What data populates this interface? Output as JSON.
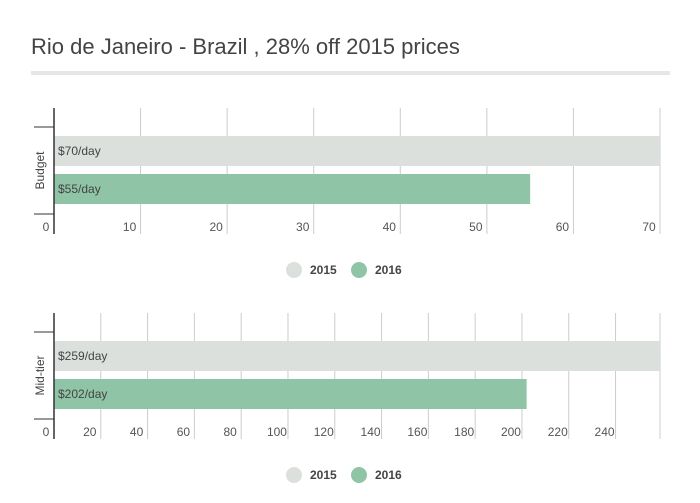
{
  "title": "Rio de Janeiro - Brazil , 28% off 2015 prices",
  "colors": {
    "series_2015": "#dbe0dd",
    "series_2016": "#8fc4a6",
    "grid": "#cccccc",
    "axis": "#333333"
  },
  "chart_data": [
    {
      "type": "bar",
      "orientation": "horizontal",
      "categories": [
        "Budget"
      ],
      "series": [
        {
          "name": "2015",
          "values": [
            70
          ],
          "labels": [
            "$70/day"
          ]
        },
        {
          "name": "2016",
          "values": [
            55
          ],
          "labels": [
            "$55/day"
          ]
        }
      ],
      "xlim": [
        0,
        70
      ],
      "xticks": [
        0,
        10,
        20,
        30,
        40,
        50,
        60,
        70
      ],
      "grid": true,
      "legend": "bottom"
    },
    {
      "type": "bar",
      "orientation": "horizontal",
      "categories": [
        "Mid-tier"
      ],
      "series": [
        {
          "name": "2015",
          "values": [
            259
          ],
          "labels": [
            "$259/day"
          ]
        },
        {
          "name": "2016",
          "values": [
            202
          ],
          "labels": [
            "$202/day"
          ]
        }
      ],
      "xlim": [
        0,
        259
      ],
      "xticks": [
        0,
        20,
        40,
        60,
        80,
        100,
        120,
        140,
        160,
        180,
        200,
        220,
        240
      ],
      "grid": true,
      "legend": "bottom"
    }
  ]
}
